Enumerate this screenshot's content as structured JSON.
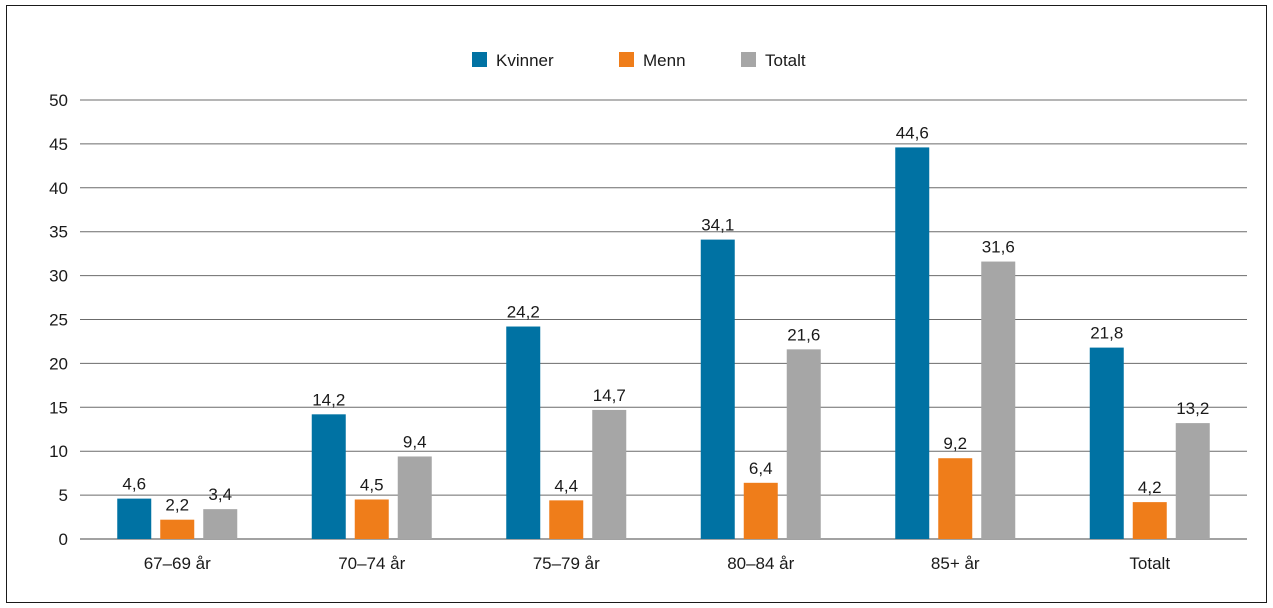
{
  "chart_data": {
    "type": "bar",
    "categories": [
      "67–69 år",
      "70–74 år",
      "75–79 år",
      "80–84 år",
      "85+ år",
      "Totalt"
    ],
    "series": [
      {
        "name": "Kvinner",
        "color": "#0072a3",
        "values": [
          4.6,
          14.2,
          24.2,
          34.1,
          44.6,
          21.8
        ],
        "labels": [
          "4,6",
          "14,2",
          "24,2",
          "34,1",
          "44,6",
          "21,8"
        ]
      },
      {
        "name": "Menn",
        "color": "#ef7d1a",
        "values": [
          2.2,
          4.5,
          4.4,
          6.4,
          9.2,
          4.2
        ],
        "labels": [
          "2,2",
          "4,5",
          "4,4",
          "6,4",
          "9,2",
          "4,2"
        ]
      },
      {
        "name": "Totalt",
        "color": "#a6a6a6",
        "values": [
          3.4,
          9.4,
          14.7,
          21.6,
          31.6,
          13.2
        ],
        "labels": [
          "3,4",
          "9,4",
          "14,7",
          "21,6",
          "31,6",
          "13,2"
        ]
      }
    ],
    "ylim": [
      0,
      50
    ],
    "yticks": [
      "0",
      "5",
      "10",
      "15",
      "20",
      "25",
      "30",
      "35",
      "40",
      "45",
      "50"
    ],
    "grid": true,
    "legend": "top-center"
  }
}
